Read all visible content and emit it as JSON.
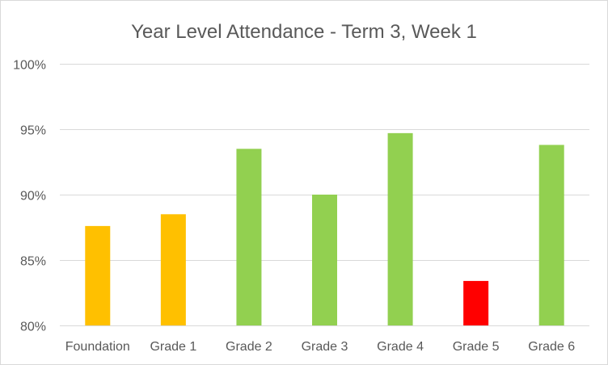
{
  "chart_data": {
    "type": "bar",
    "title": "Year Level Attendance - Term 3, Week 1",
    "xlabel": "",
    "ylabel": "",
    "categories": [
      "Foundation",
      "Grade 1",
      "Grade 2",
      "Grade 3",
      "Grade 4",
      "Grade 5",
      "Grade 6"
    ],
    "values": [
      87.6,
      88.5,
      93.5,
      90.0,
      94.7,
      83.4,
      93.8
    ],
    "bar_colors": [
      "#FFC000",
      "#FFC000",
      "#92D050",
      "#92D050",
      "#92D050",
      "#FF0000",
      "#92D050"
    ],
    "ylim": [
      80,
      100
    ],
    "yticks": [
      80,
      85,
      90,
      95,
      100
    ],
    "ytick_labels": [
      "80%",
      "85%",
      "90%",
      "95%",
      "100%"
    ],
    "grid": true,
    "legend": "none"
  }
}
